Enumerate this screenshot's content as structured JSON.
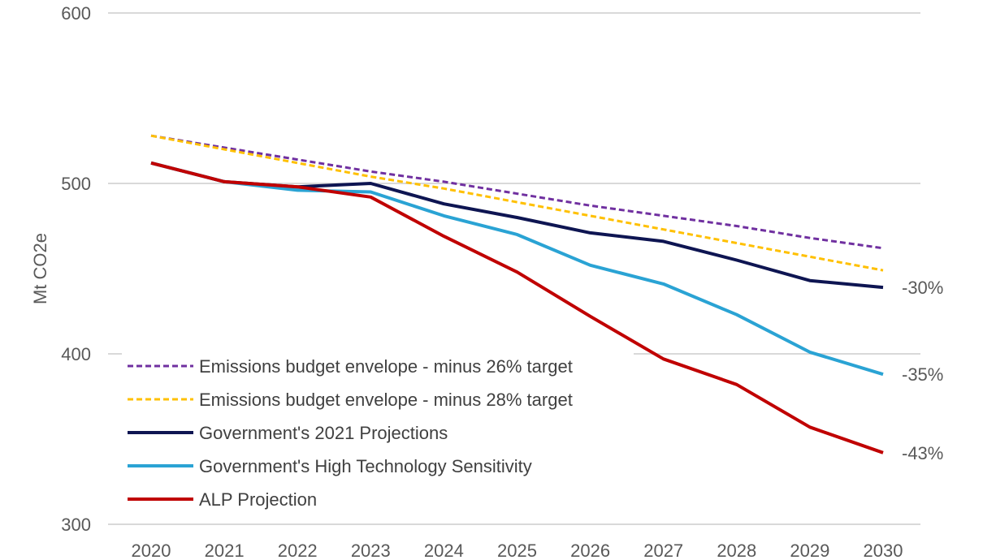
{
  "chart_data": {
    "type": "line",
    "ylabel": "Mt CO2e",
    "xlabel": "",
    "ylim": [
      300,
      600
    ],
    "yticks": [
      "300",
      "400",
      "500",
      "600"
    ],
    "x": [
      "2020",
      "2021",
      "2022",
      "2023",
      "2024",
      "2025",
      "2026",
      "2027",
      "2028",
      "2029",
      "2030"
    ],
    "grid": "horizontal",
    "legend_position": "bottom-left",
    "series": [
      {
        "name": "Emissions budget envelope - minus 26% target",
        "color": "#7030A0",
        "style": "dashed",
        "values": [
          528,
          521,
          514,
          507,
          501,
          494,
          487,
          481,
          475,
          468,
          462
        ]
      },
      {
        "name": "Emissions budget envelope - minus 28% target",
        "color": "#FFC000",
        "style": "dashed",
        "values": [
          528,
          520,
          512,
          504,
          497,
          489,
          481,
          473,
          465,
          457,
          449
        ]
      },
      {
        "name": "Government's 2021 Projections",
        "color": "#0E1552",
        "style": "solid",
        "values": [
          512,
          501,
          498,
          500,
          488,
          480,
          471,
          466,
          455,
          443,
          439
        ]
      },
      {
        "name": "Government's High Technology Sensitivity",
        "color": "#2AA3D4",
        "style": "solid",
        "values": [
          512,
          501,
          496,
          495,
          481,
          470,
          452,
          441,
          423,
          401,
          388
        ]
      },
      {
        "name": "ALP Projection",
        "color": "#C00000",
        "style": "solid",
        "values": [
          512,
          501,
          498,
          492,
          469,
          448,
          422,
          397,
          382,
          357,
          342
        ]
      }
    ],
    "annotations": [
      {
        "text": "-30%",
        "series": 2
      },
      {
        "text": "-35%",
        "series": 3
      },
      {
        "text": "-43%",
        "series": 4
      }
    ]
  }
}
